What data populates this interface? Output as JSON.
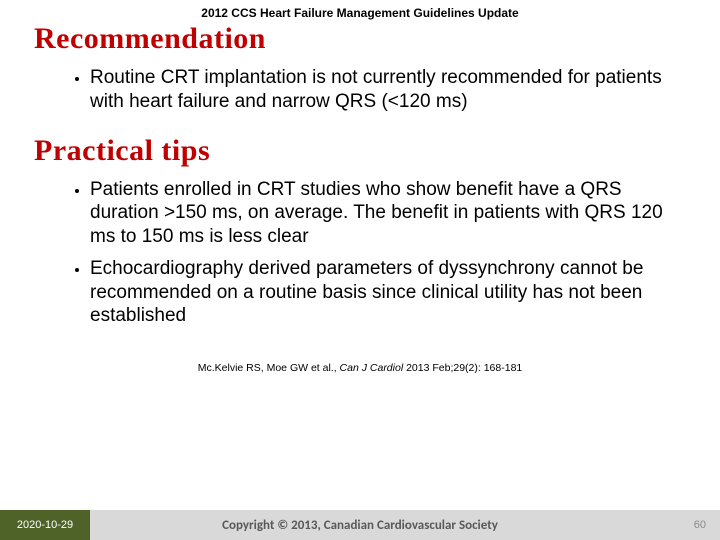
{
  "header": "2012 CCS Heart Failure Management Guidelines Update",
  "section1": {
    "title": "Recommendation",
    "bullets": [
      "Routine CRT implantation is not currently recommended for patients with heart failure and narrow QRS (<120 ms)"
    ]
  },
  "section2": {
    "title": "Practical tips",
    "bullets": [
      "Patients enrolled in CRT studies who show benefit have a QRS duration >150 ms, on average. The benefit in patients with QRS 120 ms to 150 ms is less clear",
      "Echocardiography derived parameters of dyssynchrony cannot be recommended on a routine basis since clinical utility has not been established"
    ]
  },
  "citation": {
    "authors": "Mc.Kelvie RS, Moe GW et al., ",
    "journal": "Can J Cardiol ",
    "rest": "2013 Feb;29(2): 168-181"
  },
  "footer": {
    "date": "2020-10-29",
    "copyright": "Copyright © 2013, Canadian Cardiovascular Society",
    "page": "60"
  },
  "colors": {
    "title": "#c00000",
    "footer_left_bg": "#4f6228",
    "footer_bg": "#d9d9d9",
    "footer_text": "#595959"
  }
}
